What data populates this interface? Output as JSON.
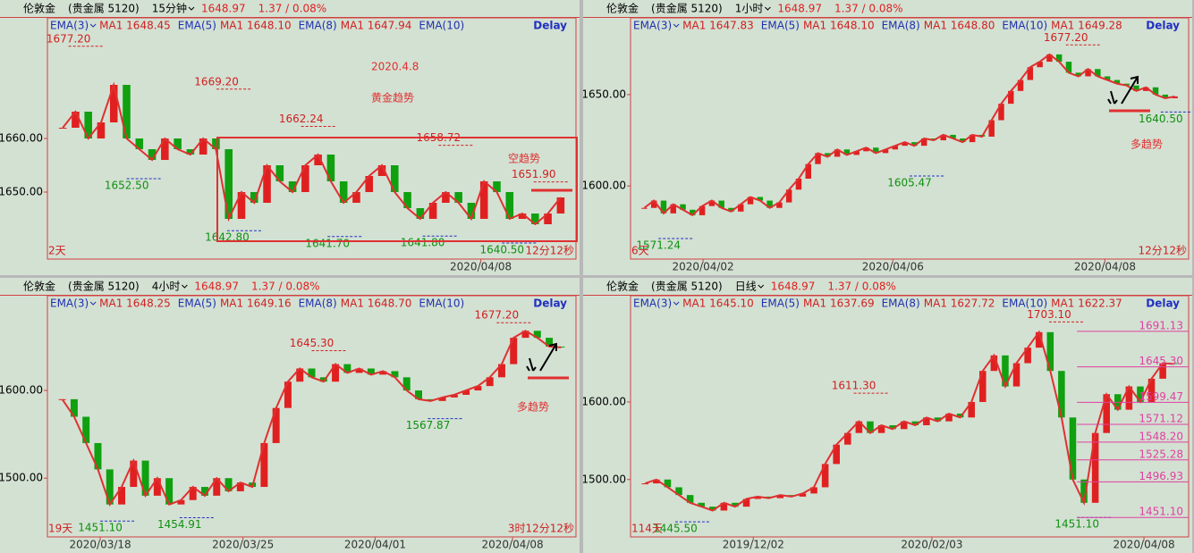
{
  "panels": [
    {
      "symbol": "伦敦金",
      "market": "(贵金属 5120)",
      "period": "15分钟",
      "price": "1648.97",
      "change": "1.37 / 0.08%",
      "delay": "Delay",
      "indicators": [
        "EMA(3)",
        "MA1 1648.45",
        "EMA(5)",
        "MA1 1648.10",
        "EMA(8)",
        "MA1 1647.94",
        "EMA(10)"
      ],
      "ylim": [
        1637.5,
        1682.5
      ],
      "yticks": [
        {
          "value": 1650,
          "label": "1650.00"
        },
        {
          "value": 1660,
          "label": "1660.00"
        }
      ],
      "dates": [
        "2020/04/08"
      ],
      "footer_left": "2天",
      "footer_right": "12分12秒",
      "highs": [
        {
          "value": 1677.2,
          "label": "1677.20"
        },
        {
          "value": 1669.2,
          "label": "1669.20"
        },
        {
          "value": 1662.24,
          "label": "1662.24"
        },
        {
          "value": 1658.72,
          "label": "1658.72"
        },
        {
          "value": 1651.9,
          "label": "1651.90"
        }
      ],
      "lows": [
        {
          "value": 1652.5,
          "label": "1652.50"
        },
        {
          "value": 1642.8,
          "label": "1642.80"
        },
        {
          "value": 1641.7,
          "label": "1641.70"
        },
        {
          "value": 1641.8,
          "label": "1641.80"
        },
        {
          "value": 1640.5,
          "label": "1640.50"
        }
      ],
      "notes": [
        "2020.4.8",
        "黄金趋势",
        "空趋势"
      ],
      "closes": [
        1662,
        1665,
        1660,
        1663,
        1670,
        1660,
        1658,
        1656,
        1660,
        1658,
        1657,
        1660,
        1658,
        1645,
        1650,
        1648,
        1655,
        1652,
        1650,
        1655,
        1657,
        1652,
        1648,
        1650,
        1653,
        1655,
        1650,
        1647,
        1645,
        1648,
        1650,
        1648,
        1645,
        1652,
        1650,
        1645,
        1646,
        1644,
        1646,
        1649
      ]
    },
    {
      "symbol": "伦敦金",
      "market": "(贵金属 5120)",
      "period": "1小时",
      "price": "1648.97",
      "change": "1.37 / 0.08%",
      "delay": "Delay",
      "indicators": [
        "EMA(3)",
        "MA1 1647.83",
        "EMA(5)",
        "MA1 1648.10",
        "EMA(8)",
        "MA1 1648.80",
        "EMA(10)",
        "MA1 1649.28"
      ],
      "ylim": [
        1560,
        1692
      ],
      "yticks": [
        {
          "value": 1600,
          "label": "1600.00"
        },
        {
          "value": 1650,
          "label": "1650.00"
        }
      ],
      "dates": [
        "2020/04/02",
        "2020/04/06",
        "2020/04/08"
      ],
      "footer_left": "6天",
      "footer_right": "12分12秒",
      "highs": [
        {
          "value": 1677.2,
          "label": "1677.20"
        }
      ],
      "lows": [
        {
          "value": 1640.5,
          "label": "1640.50"
        },
        {
          "value": 1605.47,
          "label": "1605.47"
        },
        {
          "value": 1571.24,
          "label": "1571.24"
        }
      ],
      "notes": [
        "多趋势"
      ],
      "closes": [
        1588,
        1592,
        1585,
        1590,
        1587,
        1584,
        1589,
        1592,
        1588,
        1586,
        1590,
        1594,
        1592,
        1588,
        1591,
        1598,
        1604,
        1612,
        1618,
        1616,
        1620,
        1617,
        1619,
        1621,
        1618,
        1620,
        1622,
        1624,
        1622,
        1626,
        1625,
        1628,
        1626,
        1624,
        1628,
        1627,
        1636,
        1645,
        1652,
        1658,
        1665,
        1668,
        1672,
        1668,
        1662,
        1660,
        1664,
        1660,
        1658,
        1656,
        1655,
        1652,
        1654,
        1650,
        1648,
        1649
      ]
    },
    {
      "symbol": "伦敦金",
      "market": "(贵金属 5120)",
      "period": "4小时",
      "price": "1648.97",
      "change": "1.37 / 0.08%",
      "delay": "Delay",
      "indicators": [
        "EMA(3)",
        "MA1 1648.25",
        "EMA(5)",
        "MA1 1649.16",
        "EMA(8)",
        "MA1 1648.70",
        "EMA(10)"
      ],
      "ylim": [
        1433,
        1708
      ],
      "yticks": [
        {
          "value": 1500,
          "label": "1500.00"
        },
        {
          "value": 1600,
          "label": "1600.00"
        }
      ],
      "dates": [
        "2020/03/18",
        "2020/03/25",
        "2020/04/01",
        "2020/04/08"
      ],
      "footer_left": "19天",
      "footer_right": "3时12分12秒",
      "highs": [
        {
          "value": 1677.2,
          "label": "1677.20"
        },
        {
          "value": 1645.3,
          "label": "1645.30"
        }
      ],
      "lows": [
        {
          "value": 1451.1,
          "label": "1451.10"
        },
        {
          "value": 1454.91,
          "label": "1454.91"
        },
        {
          "value": 1567.87,
          "label": "1567.87"
        }
      ],
      "notes": [
        "多趋势"
      ],
      "closes": [
        1590,
        1570,
        1540,
        1510,
        1470,
        1490,
        1520,
        1480,
        1500,
        1470,
        1475,
        1490,
        1480,
        1500,
        1485,
        1495,
        1490,
        1540,
        1580,
        1610,
        1625,
        1615,
        1610,
        1630,
        1620,
        1625,
        1618,
        1622,
        1615,
        1600,
        1590,
        1588,
        1592,
        1595,
        1600,
        1605,
        1615,
        1630,
        1660,
        1668,
        1660,
        1650,
        1649
      ]
    },
    {
      "symbol": "伦敦金",
      "market": "(贵金属 5120)",
      "period": "日线",
      "price": "1648.97",
      "change": "1.37 / 0.08%",
      "delay": "Delay",
      "indicators": [
        "EMA(3)",
        "MA1 1645.10",
        "EMA(5)",
        "MA1 1637.69",
        "EMA(8)",
        "MA1 1627.72",
        "EMA(10)",
        "MA1 1622.37"
      ],
      "ylim": [
        1426,
        1737
      ],
      "yticks": [
        {
          "value": 1500,
          "label": "1500.00"
        },
        {
          "value": 1600,
          "label": "1600.00"
        }
      ],
      "dates": [
        "2019/12/02",
        "2020/02/03",
        "2020/04/08"
      ],
      "footer_left": "114天",
      "footer_right": "",
      "highs": [
        {
          "value": 1703.1,
          "label": "1703.10"
        },
        {
          "value": 1611.3,
          "label": "1611.30"
        }
      ],
      "lows": [
        {
          "value": 1445.5,
          "label": "1445.50"
        },
        {
          "value": 1451.1,
          "label": "1451.10"
        }
      ],
      "levels": [
        {
          "value": 1691.13,
          "label": "1691.13"
        },
        {
          "value": 1645.3,
          "label": "1645.30"
        },
        {
          "value": 1599.47,
          "label": "1599.47"
        },
        {
          "value": 1571.12,
          "label": "1571.12"
        },
        {
          "value": 1548.2,
          "label": "1548.20"
        },
        {
          "value": 1525.28,
          "label": "1525.28"
        },
        {
          "value": 1496.93,
          "label": "1496.93"
        },
        {
          "value": 1451.1,
          "label": "1451.10"
        }
      ],
      "closes": [
        1495,
        1500,
        1490,
        1480,
        1470,
        1465,
        1460,
        1470,
        1465,
        1475,
        1478,
        1476,
        1480,
        1478,
        1482,
        1490,
        1520,
        1545,
        1560,
        1575,
        1560,
        1570,
        1565,
        1575,
        1570,
        1580,
        1575,
        1585,
        1580,
        1600,
        1640,
        1660,
        1620,
        1650,
        1670,
        1690,
        1640,
        1580,
        1500,
        1470,
        1560,
        1610,
        1590,
        1620,
        1600,
        1630,
        1650,
        1649
      ]
    }
  ]
}
